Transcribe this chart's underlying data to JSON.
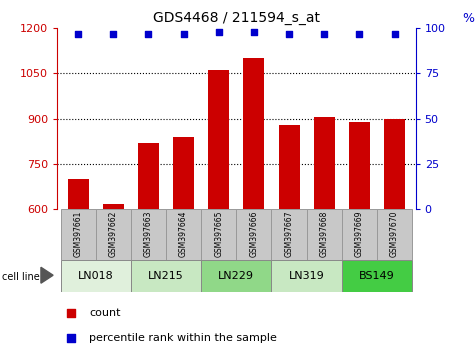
{
  "title": "GDS4468 / 211594_s_at",
  "samples": [
    "GSM397661",
    "GSM397662",
    "GSM397663",
    "GSM397664",
    "GSM397665",
    "GSM397666",
    "GSM397667",
    "GSM397668",
    "GSM397669",
    "GSM397670"
  ],
  "counts": [
    700,
    615,
    820,
    840,
    1060,
    1100,
    880,
    905,
    890,
    900
  ],
  "percentiles": [
    97,
    97,
    97,
    97,
    98,
    98,
    97,
    97,
    97,
    97
  ],
  "cell_lines": [
    {
      "label": "LN018",
      "start": 0,
      "end": 2,
      "color": "#e0f0dc"
    },
    {
      "label": "LN215",
      "start": 2,
      "end": 4,
      "color": "#c8e8c2"
    },
    {
      "label": "LN229",
      "start": 4,
      "end": 6,
      "color": "#90d888"
    },
    {
      "label": "LN319",
      "start": 6,
      "end": 8,
      "color": "#c8e8c2"
    },
    {
      "label": "BS149",
      "start": 8,
      "end": 10,
      "color": "#44cc44"
    }
  ],
  "ylim_left": [
    600,
    1200
  ],
  "ylim_right": [
    0,
    100
  ],
  "yticks_left": [
    600,
    750,
    900,
    1050,
    1200
  ],
  "yticks_right": [
    0,
    25,
    50,
    75,
    100
  ],
  "bar_color": "#cc0000",
  "dot_color": "#0000cc",
  "bg_color": "#ffffff",
  "bar_bottom": 600,
  "grid_values": [
    750,
    900,
    1050
  ],
  "sample_box_color": "#c8c8c8",
  "legend_count_color": "#cc0000",
  "legend_pct_color": "#0000cc"
}
